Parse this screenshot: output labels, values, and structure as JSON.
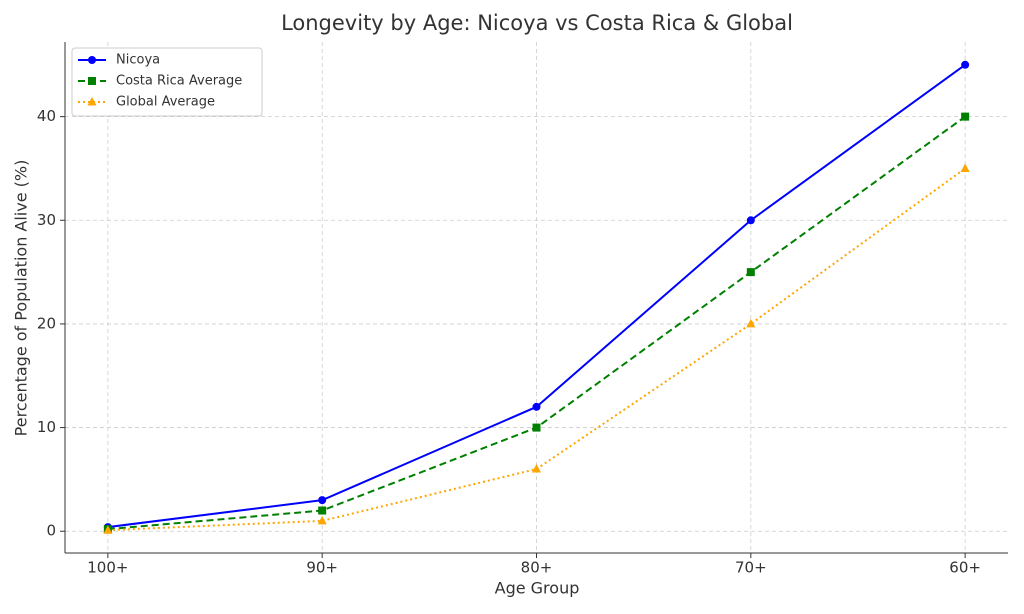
{
  "chart_data": {
    "type": "line",
    "title": "Longevity by Age: Nicoya vs Costa Rica & Global",
    "x_label": "Age Group",
    "y_label": "Percentage of Population Alive (%)",
    "categories": [
      "100+",
      "90+",
      "80+",
      "70+",
      "60+"
    ],
    "series": [
      {
        "name": "Nicoya",
        "color": "#0000ff",
        "linestyle": "solid",
        "marker": "circle",
        "values": [
          0.4,
          3,
          12,
          30,
          45
        ]
      },
      {
        "name": "Costa Rica Average",
        "color": "#008000",
        "linestyle": "dashed",
        "marker": "square",
        "values": [
          0.2,
          2,
          10,
          25,
          40
        ]
      },
      {
        "name": "Global Average",
        "color": "#ffa500",
        "linestyle": "dotted",
        "marker": "triangle",
        "values": [
          0.1,
          1,
          6,
          20,
          35
        ]
      }
    ],
    "ylim": [
      -2.1,
      47.2
    ],
    "yticks": [
      0,
      10,
      20,
      30,
      40
    ],
    "grid": true,
    "legend": "upper-left"
  }
}
